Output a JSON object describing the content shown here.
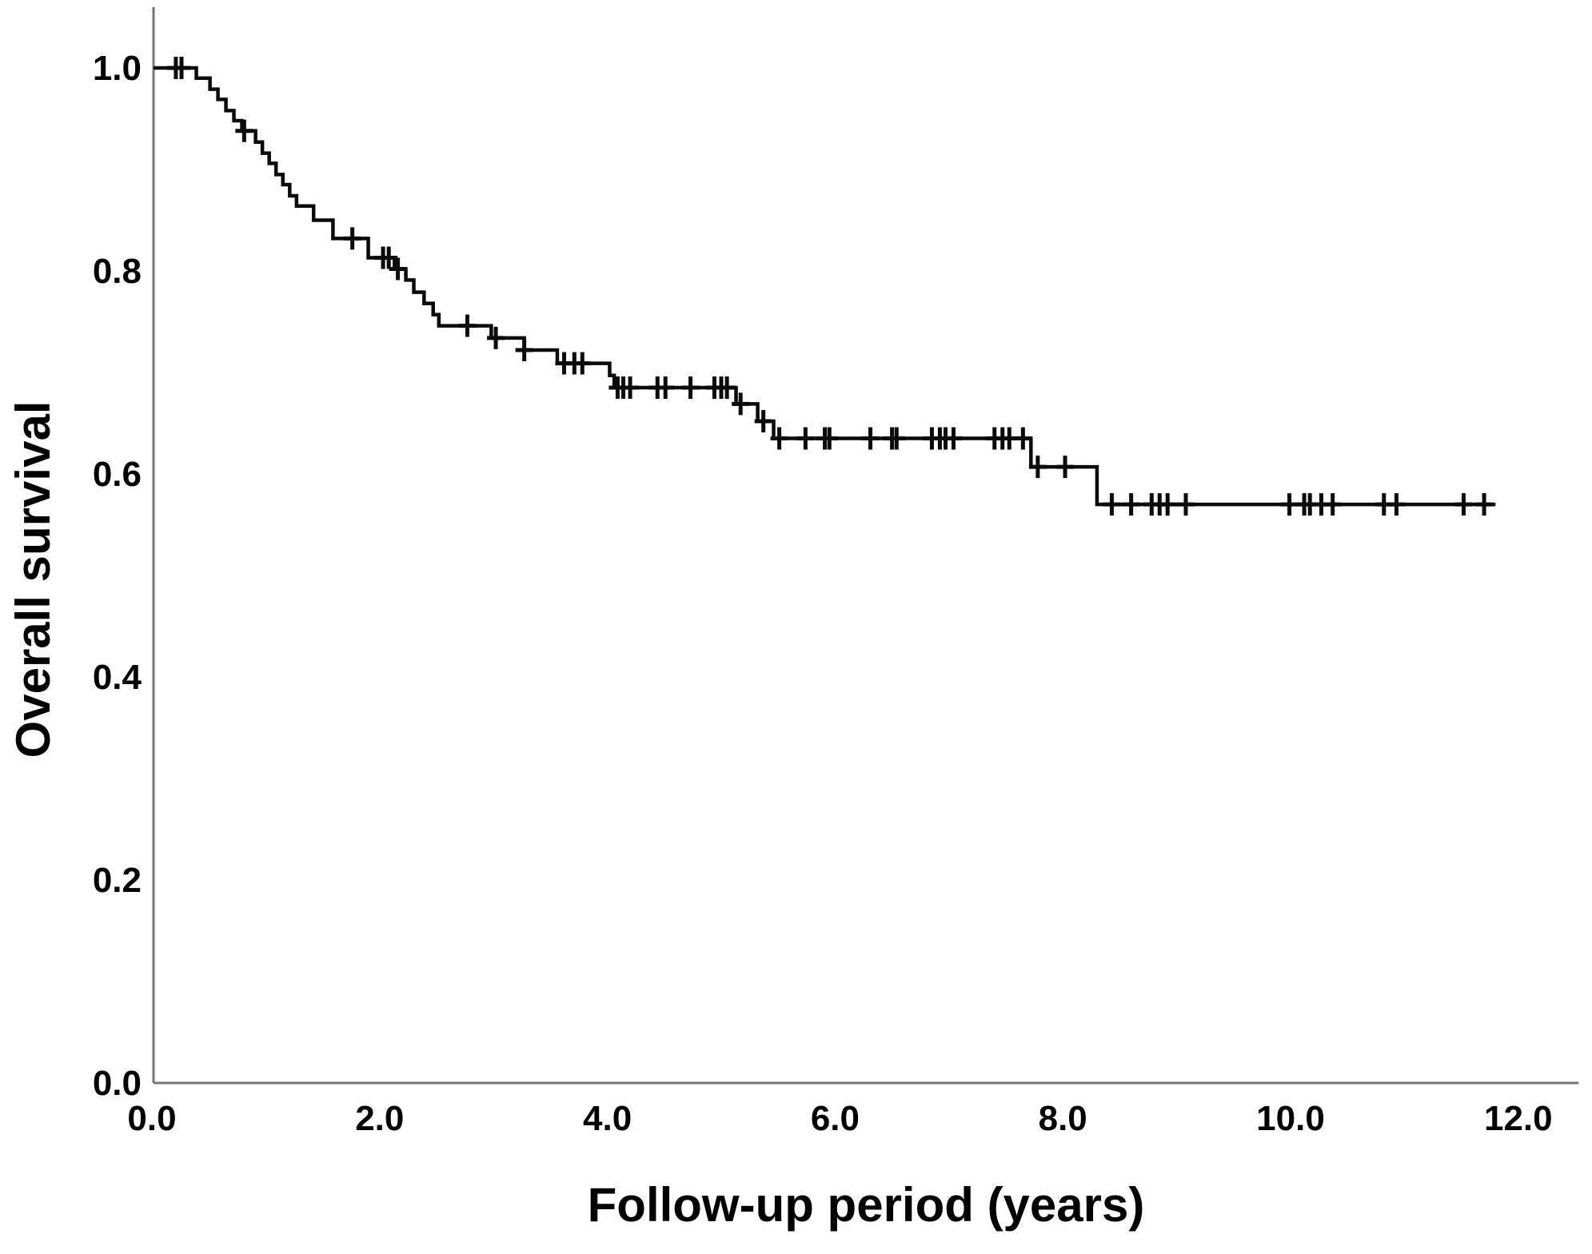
{
  "figure": {
    "background_color": "#ffffff",
    "curve_color": "#0a0a0a",
    "censor_color": "#0a0a0a",
    "axis_color": "#767676",
    "text_color": "#000000"
  },
  "chart_data": {
    "type": "line",
    "subtype": "kaplan-meier-step-function",
    "title": "",
    "xlabel": "Follow-up period (years)",
    "ylabel": "Overall survival",
    "x_tick_labels": [
      "0.0",
      "2.0",
      "4.0",
      "6.0",
      "8.0",
      "10.0",
      "12.0"
    ],
    "x_tick_values": [
      0,
      2,
      4,
      6,
      8,
      10,
      12
    ],
    "y_tick_labels": [
      "0.0",
      "0.2",
      "0.4",
      "0.6",
      "0.8",
      "1.0"
    ],
    "y_tick_values": [
      0,
      0.2,
      0.4,
      0.6,
      0.8,
      1.0
    ],
    "xlim": [
      0,
      12.53
    ],
    "ylim": [
      0,
      1.06
    ],
    "grid": false,
    "legend": "none",
    "series": [
      {
        "name": "Overall survival",
        "steps": [
          [
            0.0,
            1.0
          ],
          [
            0.39,
            0.99
          ],
          [
            0.51,
            0.979
          ],
          [
            0.58,
            0.969
          ],
          [
            0.65,
            0.958
          ],
          [
            0.72,
            0.948
          ],
          [
            0.79,
            0.938
          ],
          [
            0.91,
            0.927
          ],
          [
            0.97,
            0.916
          ],
          [
            1.03,
            0.906
          ],
          [
            1.09,
            0.895
          ],
          [
            1.15,
            0.885
          ],
          [
            1.21,
            0.874
          ],
          [
            1.27,
            0.864
          ],
          [
            1.42,
            0.85
          ],
          [
            1.59,
            0.832
          ],
          [
            1.9,
            0.813
          ],
          [
            2.13,
            0.802
          ],
          [
            2.23,
            0.791
          ],
          [
            2.3,
            0.779
          ],
          [
            2.39,
            0.768
          ],
          [
            2.47,
            0.757
          ],
          [
            2.52,
            0.746
          ],
          [
            2.98,
            0.734
          ],
          [
            3.27,
            0.722
          ],
          [
            3.56,
            0.709
          ],
          [
            4.02,
            0.697
          ],
          [
            4.06,
            0.685
          ],
          [
            5.13,
            0.669
          ],
          [
            5.32,
            0.652
          ],
          [
            5.46,
            0.635
          ],
          [
            7.72,
            0.607
          ],
          [
            8.3,
            0.57
          ]
        ],
        "end_time": 11.8,
        "final_survival": 0.57,
        "censor_marks": [
          [
            0.21,
            1.0
          ],
          [
            0.26,
            1.0
          ],
          [
            0.81,
            0.938
          ],
          [
            1.76,
            0.832
          ],
          [
            2.03,
            0.813
          ],
          [
            2.08,
            0.813
          ],
          [
            2.16,
            0.802
          ],
          [
            2.77,
            0.746
          ],
          [
            3.02,
            0.734
          ],
          [
            3.27,
            0.722
          ],
          [
            3.62,
            0.709
          ],
          [
            3.71,
            0.709
          ],
          [
            3.78,
            0.709
          ],
          [
            4.09,
            0.685
          ],
          [
            4.14,
            0.685
          ],
          [
            4.2,
            0.685
          ],
          [
            4.44,
            0.685
          ],
          [
            4.51,
            0.685
          ],
          [
            4.73,
            0.685
          ],
          [
            4.94,
            0.685
          ],
          [
            5.0,
            0.685
          ],
          [
            5.05,
            0.685
          ],
          [
            5.17,
            0.669
          ],
          [
            5.37,
            0.652
          ],
          [
            5.51,
            0.635
          ],
          [
            5.74,
            0.635
          ],
          [
            5.91,
            0.635
          ],
          [
            5.95,
            0.635
          ],
          [
            6.31,
            0.635
          ],
          [
            6.5,
            0.635
          ],
          [
            6.54,
            0.635
          ],
          [
            6.85,
            0.635
          ],
          [
            6.92,
            0.635
          ],
          [
            6.97,
            0.635
          ],
          [
            7.04,
            0.635
          ],
          [
            7.4,
            0.635
          ],
          [
            7.47,
            0.635
          ],
          [
            7.53,
            0.635
          ],
          [
            7.65,
            0.635
          ],
          [
            7.78,
            0.607
          ],
          [
            8.02,
            0.607
          ],
          [
            8.43,
            0.57
          ],
          [
            8.6,
            0.57
          ],
          [
            8.78,
            0.57
          ],
          [
            8.85,
            0.57
          ],
          [
            8.92,
            0.57
          ],
          [
            9.08,
            0.57
          ],
          [
            9.99,
            0.57
          ],
          [
            10.12,
            0.57
          ],
          [
            10.17,
            0.57
          ],
          [
            10.27,
            0.57
          ],
          [
            10.37,
            0.57
          ],
          [
            10.82,
            0.57
          ],
          [
            10.93,
            0.57
          ],
          [
            11.52,
            0.57
          ],
          [
            11.7,
            0.57
          ]
        ]
      }
    ]
  }
}
